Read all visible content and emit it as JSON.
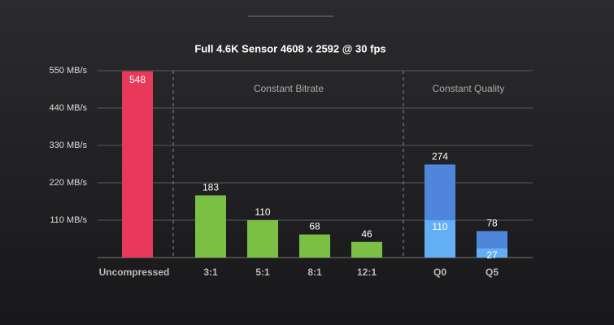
{
  "chart_data": {
    "type": "bar",
    "title": "Full 4.6K Sensor 4608 x 2592 @ 30 fps",
    "categories": [
      "Uncompressed",
      "3:1",
      "5:1",
      "8:1",
      "12:1",
      "Q0",
      "Q5"
    ],
    "values": [
      548,
      183,
      110,
      68,
      46,
      274,
      78
    ],
    "inner_values": [
      null,
      null,
      null,
      null,
      null,
      110,
      27
    ],
    "colors": [
      "#e8395a",
      "#7cbf45",
      "#7cbf45",
      "#7cbf45",
      "#7cbf45",
      "#4f86dc",
      "#4f86dc"
    ],
    "inner_color": "#64aef5",
    "annotations": [
      "Constant Bitrate",
      "Constant Quality"
    ],
    "ylim": [
      0,
      550
    ],
    "yticks": [
      {
        "value": 110,
        "label": "110 MB/s"
      },
      {
        "value": 220,
        "label": "220 MB/s"
      },
      {
        "value": 330,
        "label": "330 MB/s"
      },
      {
        "value": 440,
        "label": "440 MB/s"
      },
      {
        "value": 550,
        "label": "550 MB/s"
      }
    ],
    "grid": true
  }
}
